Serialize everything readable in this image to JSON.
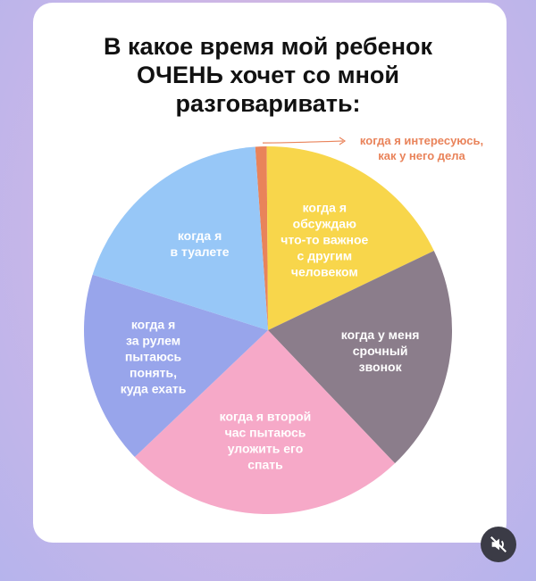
{
  "title_lines": [
    "В какое время мой ребенок",
    "ОЧЕНЬ хочет со мной",
    "разговаривать:"
  ],
  "chart_data": {
    "type": "pie",
    "title": "В какое время мой ребенок ОЧЕНЬ хочет со мной разговаривать:",
    "start_angle_deg": -4,
    "slices": [
      {
        "label": "когда я интересуюсь, как у него дела",
        "value": 1,
        "color": "#e9835a",
        "external": true
      },
      {
        "label": "когда я обсуждаю что-то важное с другим человеком",
        "value": 18,
        "color": "#f8d64b"
      },
      {
        "label": "когда у меня срочный звонок",
        "value": 20,
        "color": "#8b7d8b"
      },
      {
        "label": "когда я второй час пытаюсь уложить его спать",
        "value": 25,
        "color": "#f6a9c8"
      },
      {
        "label": "когда я за рулем пытаюсь понять, куда ехать",
        "value": 17,
        "color": "#98a5eb"
      },
      {
        "label": "когда я в туалете",
        "value": 19,
        "color": "#97c7f7"
      }
    ],
    "slice_label_lines": [
      [
        "когда я интересуюсь,",
        "как у него дела"
      ],
      [
        "когда я",
        "обсуждаю",
        "что-то важное",
        "с другим",
        "человеком"
      ],
      [
        "когда у меня",
        "срочный",
        "звонок"
      ],
      [
        "когда я второй",
        "час пытаюсь",
        "уложить его",
        "спать"
      ],
      [
        "когда я",
        "за рулем",
        "пытаюсь",
        "понять,",
        "куда ехать"
      ],
      [
        "когда я",
        "в туалете"
      ]
    ],
    "label_colors": {
      "external": "#e9835a",
      "light": "#ffffff",
      "dark": "#ffffff"
    },
    "legend": "none"
  },
  "controls": {
    "mute_icon": "speaker-muted-icon"
  }
}
